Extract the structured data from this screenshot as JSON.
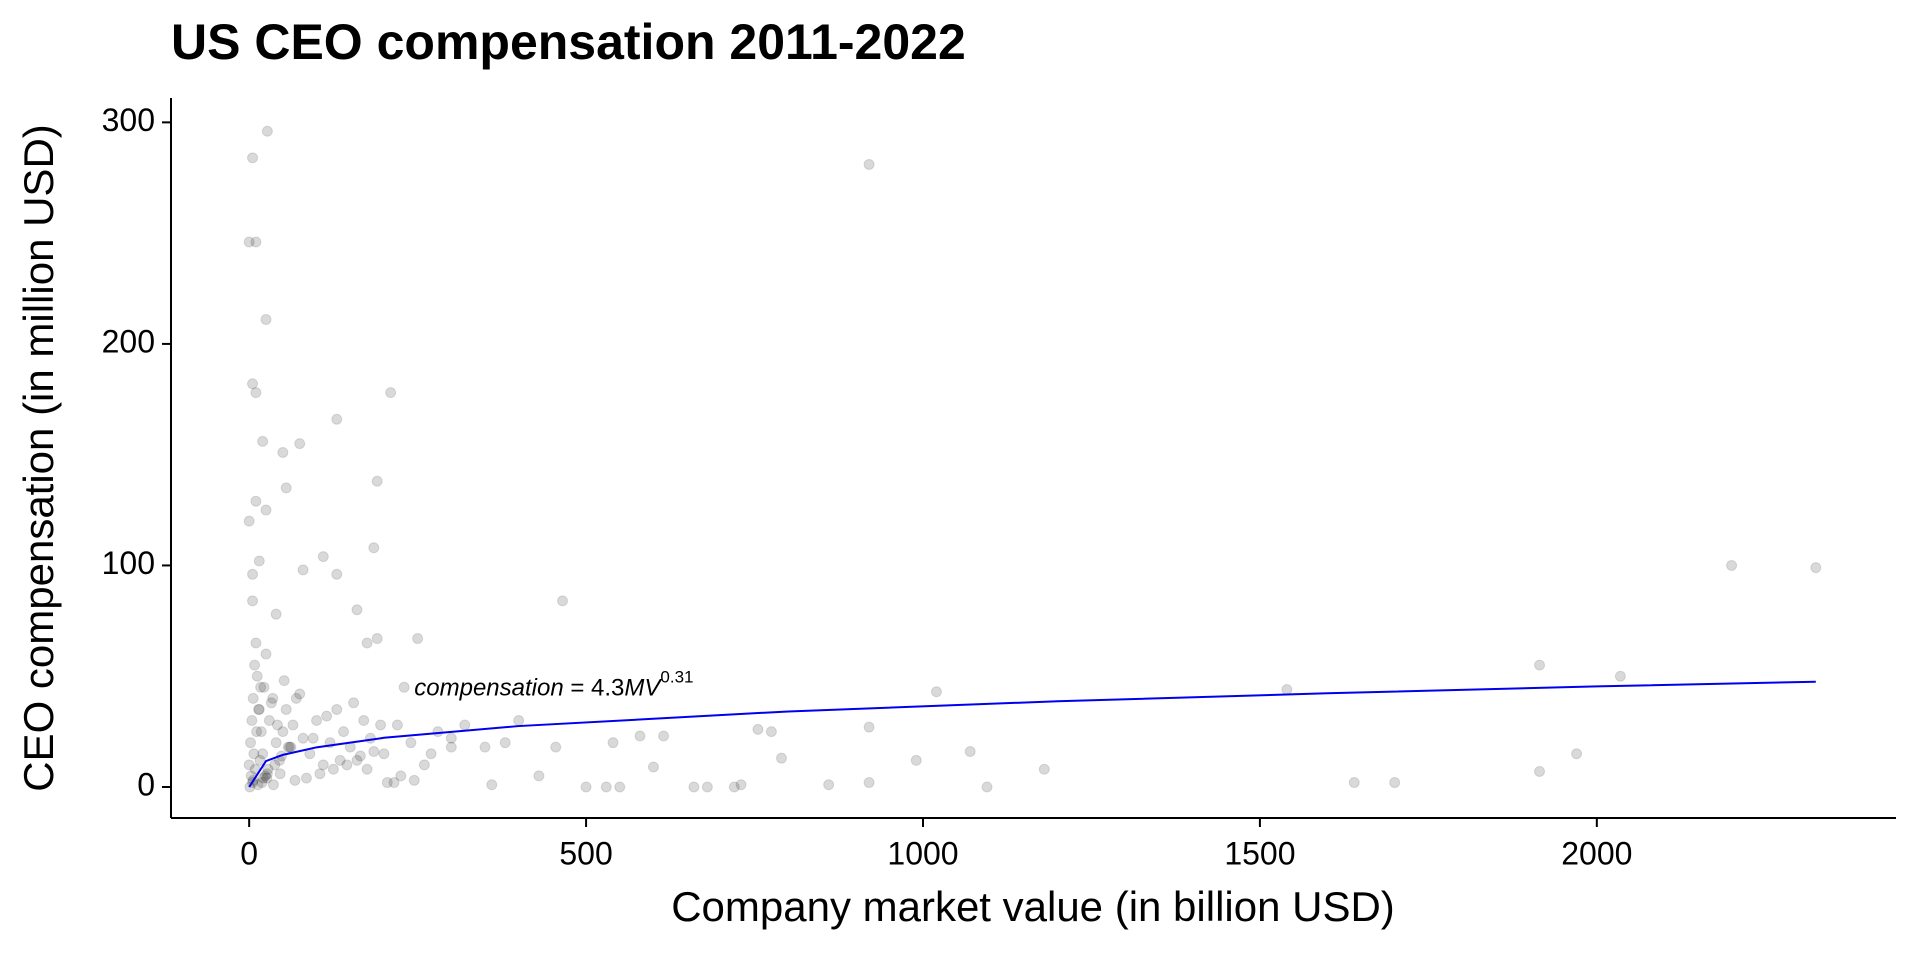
{
  "chart_data": {
    "type": "scatter",
    "title": "US CEO compensation 2011-2022",
    "x_label": "Company market value (in billion USD)",
    "y_label": "CEO compensation (in million USD)",
    "annotation": [
      "compensation",
      " = 4.3",
      "MV",
      "0.31"
    ],
    "xlim": [
      -116,
      2444
    ],
    "xticks": [
      0,
      500,
      1000,
      1500,
      2000
    ],
    "ylim": [
      -14,
      311
    ],
    "yticks": [
      0,
      100,
      200,
      300
    ],
    "series": [
      {
        "name": "CEOs",
        "color": "#000000",
        "kind": "points",
        "x": [
          27,
          5,
          920,
          0,
          10,
          25,
          5,
          10,
          210,
          130,
          20,
          75,
          50,
          55,
          190,
          10,
          25,
          0,
          185,
          110,
          15,
          130,
          5,
          80,
          2200,
          2325,
          465,
          5,
          160,
          40,
          250,
          190,
          175,
          1915,
          2035,
          1540,
          1020,
          920,
          755,
          775,
          580,
          615,
          540,
          455,
          1070,
          1970,
          990,
          790,
          1180,
          1915,
          600,
          920,
          860,
          1640,
          1700,
          1095,
          500,
          530,
          550,
          660,
          680,
          720,
          730,
          360,
          430,
          380,
          320,
          300,
          270,
          400,
          350,
          230,
          0,
          2,
          4,
          6,
          8,
          10,
          12,
          15,
          18,
          20,
          22,
          25,
          28,
          30,
          35,
          40,
          45,
          50,
          55,
          60,
          65,
          70,
          80,
          90,
          100,
          110,
          120,
          130,
          140,
          150,
          160,
          170,
          180,
          200,
          220,
          240,
          260,
          280,
          300,
          3,
          7,
          11,
          14,
          17,
          24,
          33,
          42,
          52,
          62,
          75,
          95,
          115,
          135,
          155,
          175,
          195,
          215,
          5,
          9,
          16,
          21,
          27,
          38,
          48,
          58,
          85,
          105,
          125,
          145,
          165,
          185,
          205,
          225,
          245,
          1,
          6,
          13,
          19,
          26,
          36,
          46,
          68
        ],
        "values": [
          296,
          284,
          281,
          246,
          246,
          211,
          182,
          178,
          178,
          166,
          156,
          155,
          151,
          135,
          138,
          129,
          125,
          120,
          108,
          104,
          102,
          96,
          96,
          98,
          100,
          99,
          84,
          84,
          80,
          78,
          67,
          67,
          65,
          55,
          50,
          44,
          43,
          27,
          26,
          25,
          23,
          23,
          20,
          18,
          16,
          15,
          12,
          13,
          8,
          7,
          9,
          2,
          1,
          2,
          2,
          0,
          0,
          0,
          0,
          0,
          0,
          0,
          1,
          1,
          5,
          20,
          28,
          22,
          15,
          30,
          18,
          45,
          10,
          20,
          30,
          40,
          55,
          65,
          50,
          35,
          25,
          15,
          45,
          60,
          8,
          30,
          40,
          20,
          12,
          25,
          35,
          18,
          28,
          40,
          22,
          15,
          30,
          10,
          20,
          35,
          25,
          18,
          12,
          30,
          22,
          15,
          28,
          20,
          10,
          25,
          18,
          5,
          15,
          25,
          35,
          45,
          5,
          38,
          28,
          48,
          18,
          42,
          22,
          32,
          12,
          38,
          8,
          28,
          2,
          2,
          8,
          12,
          4,
          6,
          10,
          14,
          18,
          4,
          6,
          8,
          10,
          14,
          16,
          2,
          5,
          3,
          0,
          3,
          1,
          2,
          4,
          1,
          6,
          3
        ]
      },
      {
        "name": "Fit",
        "color": "#0000ee",
        "kind": "line",
        "x": [
          0,
          25,
          50,
          100,
          200,
          400,
          800,
          1200,
          1600,
          2000,
          2325
        ],
        "values": [
          0,
          11.7,
          14.5,
          17.9,
          22.2,
          27.5,
          34.1,
          38.7,
          42.3,
          45.4,
          47.5
        ]
      }
    ]
  }
}
